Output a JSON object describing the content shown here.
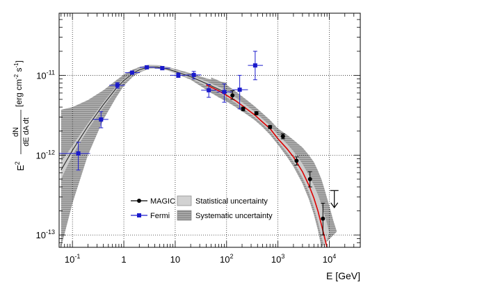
{
  "chart_data": {
    "type": "scatter",
    "xlabel": "E [GeV]",
    "ylabel": {
      "e2": "E",
      "sup": "2",
      "frac_num": "dN",
      "frac_den": "dE dA dt",
      "unit": "[erg cm",
      "unit_sup1": "-2",
      "unit_mid": " s",
      "unit_sup2": "-1",
      "unit_end": "]"
    },
    "x_scale": "log",
    "y_scale": "log",
    "xlim": [
      0.055,
      40000
    ],
    "ylim": [
      7e-14,
      6e-11
    ],
    "grid": true,
    "x_ticks": [
      {
        "value": 0.1,
        "base": "10",
        "exp": "-1"
      },
      {
        "value": 1,
        "base": "1",
        "exp": ""
      },
      {
        "value": 10,
        "base": "10",
        "exp": ""
      },
      {
        "value": 100,
        "base": "10",
        "exp": "2"
      },
      {
        "value": 1000,
        "base": "10",
        "exp": "3"
      },
      {
        "value": 10000,
        "base": "10",
        "exp": "4"
      }
    ],
    "y_ticks": [
      {
        "value": 1e-13,
        "base": "10",
        "exp": "-13"
      },
      {
        "value": 1e-12,
        "base": "10",
        "exp": "-12"
      },
      {
        "value": 1e-11,
        "base": "10",
        "exp": "-11"
      }
    ],
    "legend": {
      "placement": "bottom-center",
      "entries": [
        {
          "label": "MAGIC",
          "kind": "marker",
          "marker": "circle",
          "color": "#000000"
        },
        {
          "label": "Statistical uncertainty",
          "kind": "box",
          "color": "#d2d2d2"
        },
        {
          "label": "Fermi",
          "kind": "marker",
          "marker": "square",
          "color": "#1a1acc"
        },
        {
          "label": "Systematic uncertainty",
          "kind": "box",
          "color": "#8c8c8c"
        }
      ]
    },
    "series": [
      {
        "name": "Fermi",
        "marker": "square",
        "color": "#1a1acc",
        "points": [
          {
            "x": 0.13,
            "y": 1.05e-12,
            "xlo": 0.055,
            "xhi": 0.22,
            "ylo": 6.5e-13,
            "yhi": 1.45e-12
          },
          {
            "x": 0.36,
            "y": 2.8e-12,
            "xlo": 0.25,
            "xhi": 0.5,
            "ylo": 2.2e-12,
            "yhi": 3.5e-12
          },
          {
            "x": 0.75,
            "y": 7.5e-12,
            "xlo": 0.52,
            "xhi": 1.05,
            "ylo": 6.9e-12,
            "yhi": 8.1e-12
          },
          {
            "x": 1.45,
            "y": 1.08e-11,
            "xlo": 1.05,
            "xhi": 2.05,
            "ylo": 1.03e-11,
            "yhi": 1.13e-11
          },
          {
            "x": 2.8,
            "y": 1.26e-11,
            "xlo": 2.05,
            "xhi": 4.0,
            "ylo": 1.21e-11,
            "yhi": 1.31e-11
          },
          {
            "x": 5.6,
            "y": 1.23e-11,
            "xlo": 4.0,
            "xhi": 8.0,
            "ylo": 1.17e-11,
            "yhi": 1.29e-11
          },
          {
            "x": 11.5,
            "y": 1e-11,
            "xlo": 8.0,
            "xhi": 16.0,
            "ylo": 9.4e-12,
            "yhi": 1.07e-11
          },
          {
            "x": 23,
            "y": 1.01e-11,
            "xlo": 16.0,
            "xhi": 32.0,
            "ylo": 9e-12,
            "yhi": 1.12e-11
          },
          {
            "x": 45,
            "y": 6.5e-12,
            "xlo": 32.0,
            "xhi": 64.0,
            "ylo": 5.3e-12,
            "yhi": 7.7e-12
          },
          {
            "x": 90,
            "y": 6.2e-12,
            "xlo": 64.0,
            "xhi": 130.0,
            "ylo": 4.6e-12,
            "yhi": 7.8e-12
          },
          {
            "x": 180,
            "y": 6.6e-12,
            "xlo": 130.0,
            "xhi": 260.0,
            "ylo": 3.8e-12,
            "yhi": 1e-11
          },
          {
            "x": 360,
            "y": 1.33e-11,
            "xlo": 260.0,
            "xhi": 510.0,
            "ylo": 8.8e-12,
            "yhi": 2e-11
          }
        ]
      },
      {
        "name": "MAGIC",
        "marker": "circle",
        "color": "#000000",
        "points": [
          {
            "x": 130,
            "y": 5.6e-12,
            "ylo": 5e-12,
            "yhi": 6.4e-12
          },
          {
            "x": 210,
            "y": 3.8e-12,
            "ylo": 3.6e-12,
            "yhi": 4e-12
          },
          {
            "x": 380,
            "y": 3.35e-12,
            "ylo": 3.2e-12,
            "yhi": 3.5e-12
          },
          {
            "x": 700,
            "y": 2.25e-12,
            "ylo": 2.15e-12,
            "yhi": 2.35e-12
          },
          {
            "x": 1250,
            "y": 1.72e-12,
            "ylo": 1.6e-12,
            "yhi": 1.85e-12
          },
          {
            "x": 2300,
            "y": 8.5e-13,
            "ylo": 7.5e-13,
            "yhi": 9.5e-13
          },
          {
            "x": 4200,
            "y": 5e-13,
            "ylo": 4e-13,
            "yhi": 6.2e-13
          },
          {
            "x": 7500,
            "y": 1.6e-13,
            "ylo": 1e-13,
            "yhi": 2.5e-13
          }
        ]
      }
    ],
    "upper_limit": {
      "x": 12500,
      "y": 3.6e-13,
      "y_to": 2.2e-13
    },
    "fits": {
      "fermi_fit": {
        "color": "#333333",
        "points": [
          [
            0.06,
            6.5e-13
          ],
          [
            0.1,
            1.15e-12
          ],
          [
            0.2,
            2.3e-12
          ],
          [
            0.4,
            4.3e-12
          ],
          [
            0.7,
            6.8e-12
          ],
          [
            1,
            8.6e-12
          ],
          [
            1.5,
            1.06e-11
          ],
          [
            2,
            1.17e-11
          ],
          [
            3,
            1.27e-11
          ],
          [
            4.5,
            1.27e-11
          ],
          [
            7,
            1.2e-11
          ],
          [
            10,
            1.12e-11
          ],
          [
            20,
            9.6e-12
          ],
          [
            40,
            7.9e-12
          ],
          [
            70,
            6.7e-12
          ],
          [
            100,
            6e-12
          ]
        ]
      },
      "magic_fit": {
        "color": "#dd0000",
        "points": [
          [
            40,
            7.6e-12
          ],
          [
            70,
            6.4e-12
          ],
          [
            100,
            5.6e-12
          ],
          [
            150,
            4.8e-12
          ],
          [
            220,
            4e-12
          ],
          [
            350,
            3.2e-12
          ],
          [
            500,
            2.6e-12
          ],
          [
            700,
            2.15e-12
          ],
          [
            1000,
            1.6e-12
          ],
          [
            1500,
            1.2e-12
          ],
          [
            2000,
            9.5e-13
          ],
          [
            3000,
            6.2e-13
          ],
          [
            4000,
            4.2e-13
          ],
          [
            5000,
            2.9e-13
          ],
          [
            6000,
            2e-13
          ],
          [
            7000,
            1.35e-13
          ],
          [
            8000,
            9.5e-14
          ],
          [
            9000,
            7e-14
          ]
        ]
      },
      "stat_band": {
        "color": "#d2d2d2",
        "lower": [
          [
            0.06,
            5e-13
          ],
          [
            0.1,
            1e-12
          ],
          [
            0.2,
            2.1e-12
          ],
          [
            0.4,
            4e-12
          ],
          [
            0.7,
            6.4e-12
          ],
          [
            1,
            8.2e-12
          ],
          [
            1.5,
            1.02e-11
          ],
          [
            2,
            1.12e-11
          ],
          [
            3,
            1.21e-11
          ],
          [
            4.5,
            1.21e-11
          ],
          [
            7,
            1.15e-11
          ],
          [
            10,
            1.07e-11
          ],
          [
            20,
            9.2e-12
          ],
          [
            40,
            7.4e-12
          ],
          [
            70,
            6.1e-12
          ],
          [
            100,
            5.3e-12
          ],
          [
            150,
            4.5e-12
          ],
          [
            220,
            3.75e-12
          ],
          [
            350,
            3e-12
          ],
          [
            500,
            2.45e-12
          ],
          [
            700,
            2e-12
          ],
          [
            1000,
            1.48e-12
          ],
          [
            1500,
            1.08e-12
          ],
          [
            2000,
            8.3e-13
          ],
          [
            3000,
            5.2e-13
          ],
          [
            4000,
            3.4e-13
          ],
          [
            5000,
            2.2e-13
          ],
          [
            6000,
            1.45e-13
          ],
          [
            7000,
            9.5e-14
          ],
          [
            8000,
            7e-14
          ]
        ],
        "upper": [
          [
            0.06,
            8.2e-13
          ],
          [
            0.1,
            1.32e-12
          ],
          [
            0.2,
            2.5e-12
          ],
          [
            0.4,
            4.6e-12
          ],
          [
            0.7,
            7.2e-12
          ],
          [
            1,
            9e-12
          ],
          [
            1.5,
            1.1e-11
          ],
          [
            2,
            1.22e-11
          ],
          [
            3,
            1.33e-11
          ],
          [
            4.5,
            1.33e-11
          ],
          [
            7,
            1.26e-11
          ],
          [
            10,
            1.17e-11
          ],
          [
            20,
            1e-11
          ],
          [
            40,
            8.4e-12
          ],
          [
            70,
            7.2e-12
          ],
          [
            100,
            6.5e-12
          ],
          [
            150,
            5.3e-12
          ],
          [
            220,
            4.4e-12
          ],
          [
            350,
            3.5e-12
          ],
          [
            500,
            2.85e-12
          ],
          [
            700,
            2.35e-12
          ],
          [
            1000,
            1.8e-12
          ],
          [
            1500,
            1.38e-12
          ],
          [
            2000,
            1.12e-12
          ],
          [
            3000,
            7.8e-13
          ],
          [
            4000,
            5.6e-13
          ],
          [
            5000,
            4.2e-13
          ],
          [
            6000,
            3.2e-13
          ],
          [
            7000,
            2.4e-13
          ],
          [
            8000,
            1.8e-13
          ],
          [
            9000,
            1.4e-13
          ],
          [
            10000,
            1.05e-13
          ]
        ]
      },
      "syst_band_fermi": {
        "color": "#8c8c8c",
        "lower": [
          [
            0.06,
            7e-14
          ],
          [
            0.1,
            2.5e-13
          ],
          [
            0.2,
            1e-12
          ],
          [
            0.4,
            2.8e-12
          ],
          [
            0.7,
            5.2e-12
          ],
          [
            1,
            7.4e-12
          ],
          [
            1.5,
            9.6e-12
          ],
          [
            2,
            1.08e-11
          ],
          [
            3,
            1.2e-11
          ],
          [
            4.5,
            1.22e-11
          ],
          [
            7,
            1.15e-11
          ],
          [
            10,
            1.06e-11
          ],
          [
            20,
            8.8e-12
          ],
          [
            40,
            6.6e-12
          ],
          [
            70,
            5.3e-12
          ],
          [
            100,
            4.7e-12
          ]
        ],
        "upper": [
          [
            0.06,
            3.7e-12
          ],
          [
            0.1,
            4e-12
          ],
          [
            0.2,
            4.9e-12
          ],
          [
            0.4,
            6.5e-12
          ],
          [
            0.7,
            8.6e-12
          ],
          [
            1,
            1.02e-11
          ],
          [
            1.5,
            1.18e-11
          ],
          [
            2,
            1.27e-11
          ],
          [
            3,
            1.35e-11
          ],
          [
            4.5,
            1.34e-11
          ],
          [
            7,
            1.28e-11
          ],
          [
            10,
            1.2e-11
          ],
          [
            20,
            1.06e-11
          ],
          [
            40,
            9.2e-12
          ],
          [
            70,
            8.4e-12
          ],
          [
            100,
            8.1e-12
          ]
        ]
      },
      "syst_band_magic": {
        "color": "#8c8c8c",
        "lower": [
          [
            50,
            6e-12
          ],
          [
            70,
            5.4e-12
          ],
          [
            100,
            4.7e-12
          ],
          [
            150,
            4e-12
          ],
          [
            220,
            3.4e-12
          ],
          [
            350,
            2.75e-12
          ],
          [
            500,
            2.25e-12
          ],
          [
            700,
            1.8e-12
          ],
          [
            1000,
            1.35e-12
          ],
          [
            1500,
            9.5e-13
          ],
          [
            2000,
            7.2e-13
          ],
          [
            3000,
            4.4e-13
          ],
          [
            4000,
            2.8e-13
          ],
          [
            5000,
            1.8e-13
          ],
          [
            6000,
            1.15e-13
          ],
          [
            7000,
            7e-14
          ]
        ],
        "upper": [
          [
            50,
            9.4e-12
          ],
          [
            70,
            8.6e-12
          ],
          [
            100,
            7.6e-12
          ],
          [
            150,
            6.3e-12
          ],
          [
            220,
            5.2e-12
          ],
          [
            350,
            4.1e-12
          ],
          [
            500,
            3.35e-12
          ],
          [
            700,
            2.75e-12
          ],
          [
            1000,
            2.15e-12
          ],
          [
            1500,
            1.8e-12
          ],
          [
            2000,
            1.55e-12
          ],
          [
            3000,
            1.25e-12
          ],
          [
            4000,
            1e-12
          ],
          [
            5000,
            8.2e-13
          ],
          [
            6000,
            6.4e-13
          ],
          [
            7000,
            5e-13
          ],
          [
            8000,
            3.8e-13
          ],
          [
            10000,
            2.3e-13
          ],
          [
            12000,
            1.5e-13
          ],
          [
            14000,
            1.1e-13
          ]
        ]
      }
    }
  }
}
